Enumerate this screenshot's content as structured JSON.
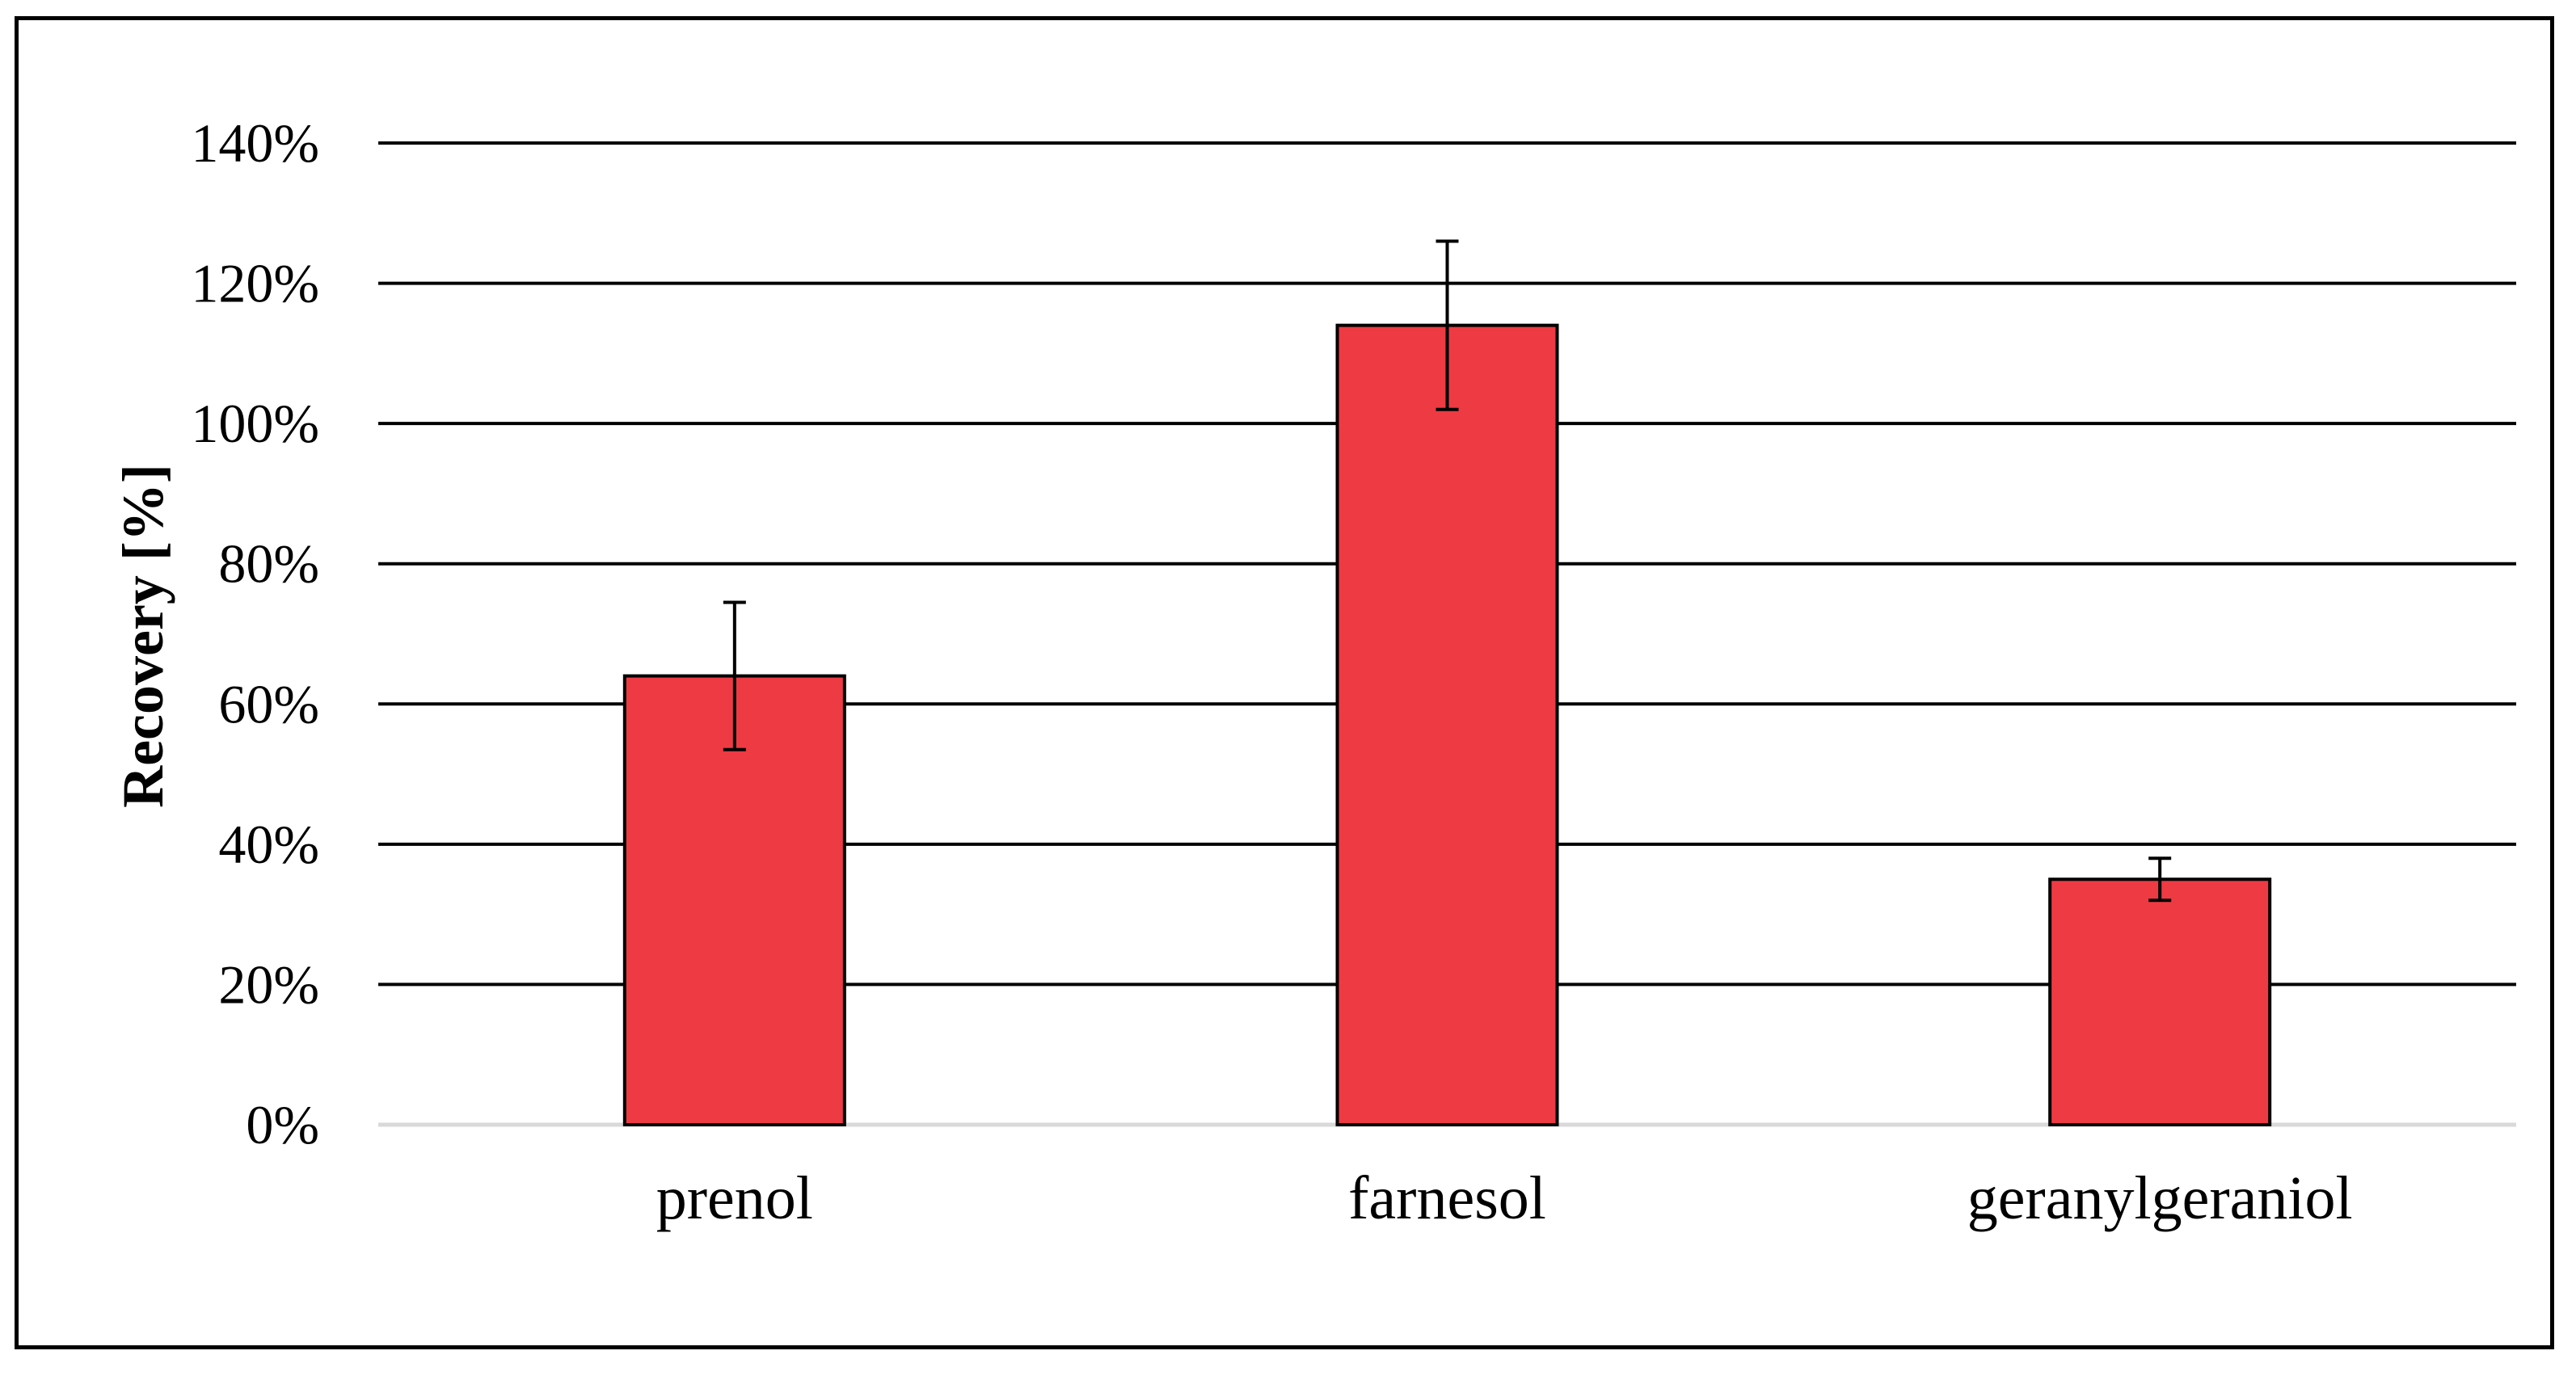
{
  "chart_data": {
    "type": "bar",
    "categories": [
      "prenol",
      "farnesol",
      "geranylgeraniol"
    ],
    "values": [
      64,
      114,
      35
    ],
    "error": [
      10.5,
      12,
      3
    ],
    "ylabel": "Recovery [%]",
    "xlabel": "",
    "ylim": [
      0,
      140
    ],
    "yticks": [
      "0%",
      "20%",
      "40%",
      "60%",
      "80%",
      "100%",
      "120%",
      "140%"
    ],
    "ytick_values": [
      0,
      20,
      40,
      60,
      80,
      100,
      120,
      140
    ],
    "grid": true,
    "bar_color": "#EE3A43",
    "grid_color": "#000000",
    "baseline_color": "#d9d9d9"
  }
}
